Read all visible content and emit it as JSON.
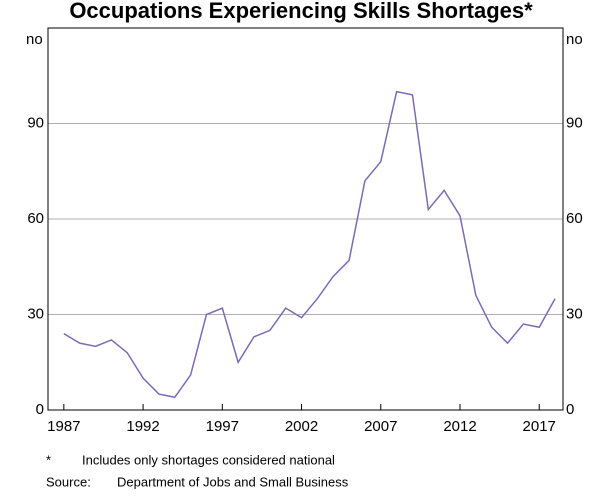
{
  "chart_data": {
    "type": "line",
    "title": "Occupations Experiencing Skills Shortages*",
    "y_unit_left": "no",
    "y_unit_right": "no",
    "x": [
      1987,
      1988,
      1989,
      1990,
      1991,
      1992,
      1993,
      1994,
      1995,
      1996,
      1997,
      1998,
      1999,
      2000,
      2001,
      2002,
      2003,
      2004,
      2005,
      2006,
      2007,
      2008,
      2009,
      2010,
      2011,
      2012,
      2013,
      2014,
      2015,
      2016,
      2017,
      2018
    ],
    "series": [
      {
        "name": "Occupations",
        "color": "#7b6bb5",
        "values": [
          24,
          21,
          20,
          22,
          18,
          10,
          5,
          4,
          11,
          30,
          32,
          15,
          23,
          25,
          32,
          29,
          35,
          42,
          47,
          72,
          78,
          100,
          99,
          63,
          69,
          61,
          36,
          26,
          21,
          27,
          26,
          35
        ]
      }
    ],
    "xlim": [
      1986,
      2018.5
    ],
    "xticks": [
      1987,
      1992,
      1997,
      2002,
      2007,
      2012,
      2017
    ],
    "ylim": [
      0,
      120
    ],
    "yticks": [
      0,
      30,
      60,
      90
    ],
    "grid": true,
    "footnote": {
      "marker": "*",
      "text": "Includes only shortages considered national"
    },
    "source": {
      "label": "Source:",
      "text": "Department of Jobs and Small Business"
    }
  }
}
